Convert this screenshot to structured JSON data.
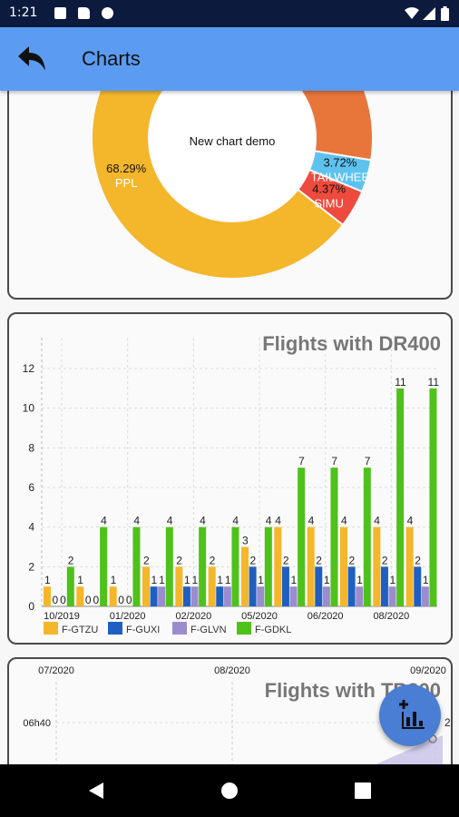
{
  "status_bar": {
    "time": "1:21"
  },
  "app_bar": {
    "title": "Charts",
    "back_icon": "back-arrow-icon"
  },
  "donut_card": {
    "chart_data": {
      "type": "pie",
      "title": "New chart demo",
      "slices": [
        {
          "label": "PPL",
          "value": 68.29,
          "display": "68.29%",
          "color": "#f4b62a"
        },
        {
          "label": "SIMU",
          "value": 4.37,
          "display": "4.37%",
          "color": "#ee4a3d"
        },
        {
          "label": "TAILWHEE",
          "value": 3.72,
          "display": "3.72%",
          "color": "#5ec2ef"
        },
        {
          "label": "",
          "value": 23.62,
          "display": "",
          "color": "#e8763a"
        }
      ]
    }
  },
  "bar_card": {
    "chart_data": {
      "type": "bar",
      "title": "Flights with DR400",
      "ylim": [
        0,
        12
      ],
      "yticks": [
        "0",
        "2",
        "4",
        "6",
        "8",
        "10",
        "12"
      ],
      "xticks": [
        "10/2019",
        "01/2020",
        "02/2020",
        "05/2020",
        "06/2020",
        "08/2020"
      ],
      "series": [
        {
          "name": "F-GTZU",
          "color": "#f4b62a",
          "values": [
            1,
            1,
            1,
            2,
            2,
            2,
            3,
            4,
            4,
            4,
            4,
            4
          ]
        },
        {
          "name": "F-GUXI",
          "color": "#1f5fc0",
          "values": [
            0,
            0,
            0,
            1,
            1,
            1,
            2,
            2,
            2,
            2,
            2,
            2
          ]
        },
        {
          "name": "F-GLVN",
          "color": "#9b8ccf",
          "values": [
            0,
            0,
            0,
            1,
            1,
            1,
            1,
            1,
            1,
            1,
            1,
            1
          ]
        },
        {
          "name": "F-GDKL",
          "color": "#4fc11b",
          "values": [
            2,
            4,
            4,
            4,
            4,
            4,
            4,
            7,
            7,
            7,
            11,
            11
          ]
        }
      ]
    }
  },
  "line_card": {
    "chart_data": {
      "type": "line",
      "title": "Flights with TB200",
      "xticks": [
        "07/2020",
        "08/2020",
        "09/2020"
      ],
      "yticks": [
        "06h40"
      ],
      "right_label": "2"
    }
  },
  "fab": {
    "icon": "add-chart-icon"
  }
}
